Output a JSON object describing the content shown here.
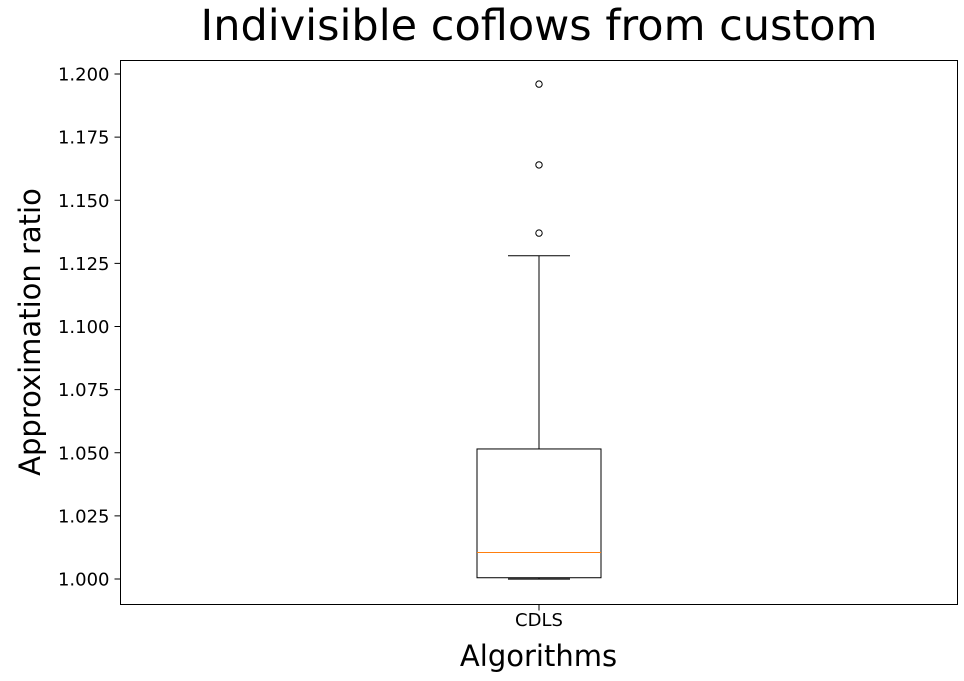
{
  "chart_data": {
    "type": "box",
    "title": "Indivisible coflows from custom",
    "xlabel": "Algorithms",
    "ylabel": "Approximation ratio",
    "categories": [
      "CDLS"
    ],
    "ylim": [
      0.99,
      1.206
    ],
    "yticks": [
      "1.000",
      "1.025",
      "1.050",
      "1.075",
      "1.100",
      "1.125",
      "1.150",
      "1.175",
      "1.200"
    ],
    "series": [
      {
        "category": "CDLS",
        "whisker_low": 1.0,
        "q1": 1.0005,
        "median": 1.0105,
        "q3": 1.0515,
        "whisker_high": 1.128,
        "outliers": [
          1.137,
          1.164,
          1.196
        ]
      }
    ],
    "grid": false,
    "colors": {
      "box": "#000000",
      "median": "#ff7f0e",
      "outlier": "#000000"
    }
  }
}
